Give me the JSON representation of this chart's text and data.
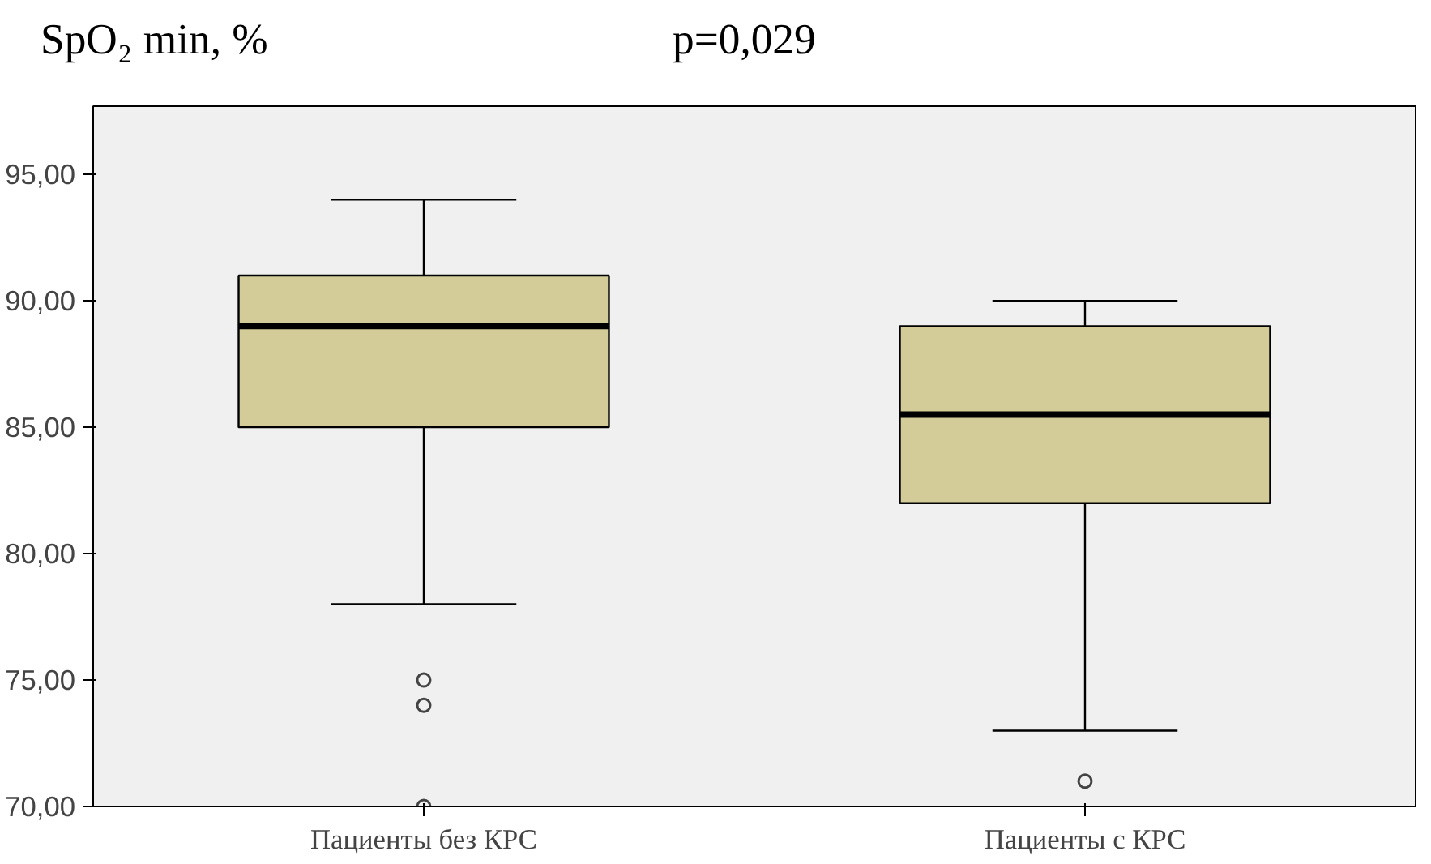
{
  "chart_data": {
    "type": "box",
    "title": "SpO₂ min, %",
    "annotations": [
      "p=0,029"
    ],
    "categories": [
      "Пациенты без КРС",
      "Пациенты с КРС"
    ],
    "boxes": [
      {
        "low": 78,
        "q1": 85,
        "median": 89,
        "q3": 91,
        "high": 94,
        "outliers": [
          75,
          74,
          70
        ]
      },
      {
        "low": 73,
        "q1": 82,
        "median": 85.5,
        "q3": 89,
        "high": 90,
        "outliers": [
          71
        ]
      }
    ],
    "color": "#d3cc99",
    "ylim": [
      70,
      97.7
    ],
    "yticks": [
      {
        "value": 70,
        "label": "70,00"
      },
      {
        "value": 75,
        "label": "75,00"
      },
      {
        "value": 80,
        "label": "80,00"
      },
      {
        "value": 85,
        "label": "85,00"
      },
      {
        "value": 90,
        "label": "90,00"
      },
      {
        "value": 95,
        "label": "95,00"
      }
    ],
    "grid": false
  }
}
